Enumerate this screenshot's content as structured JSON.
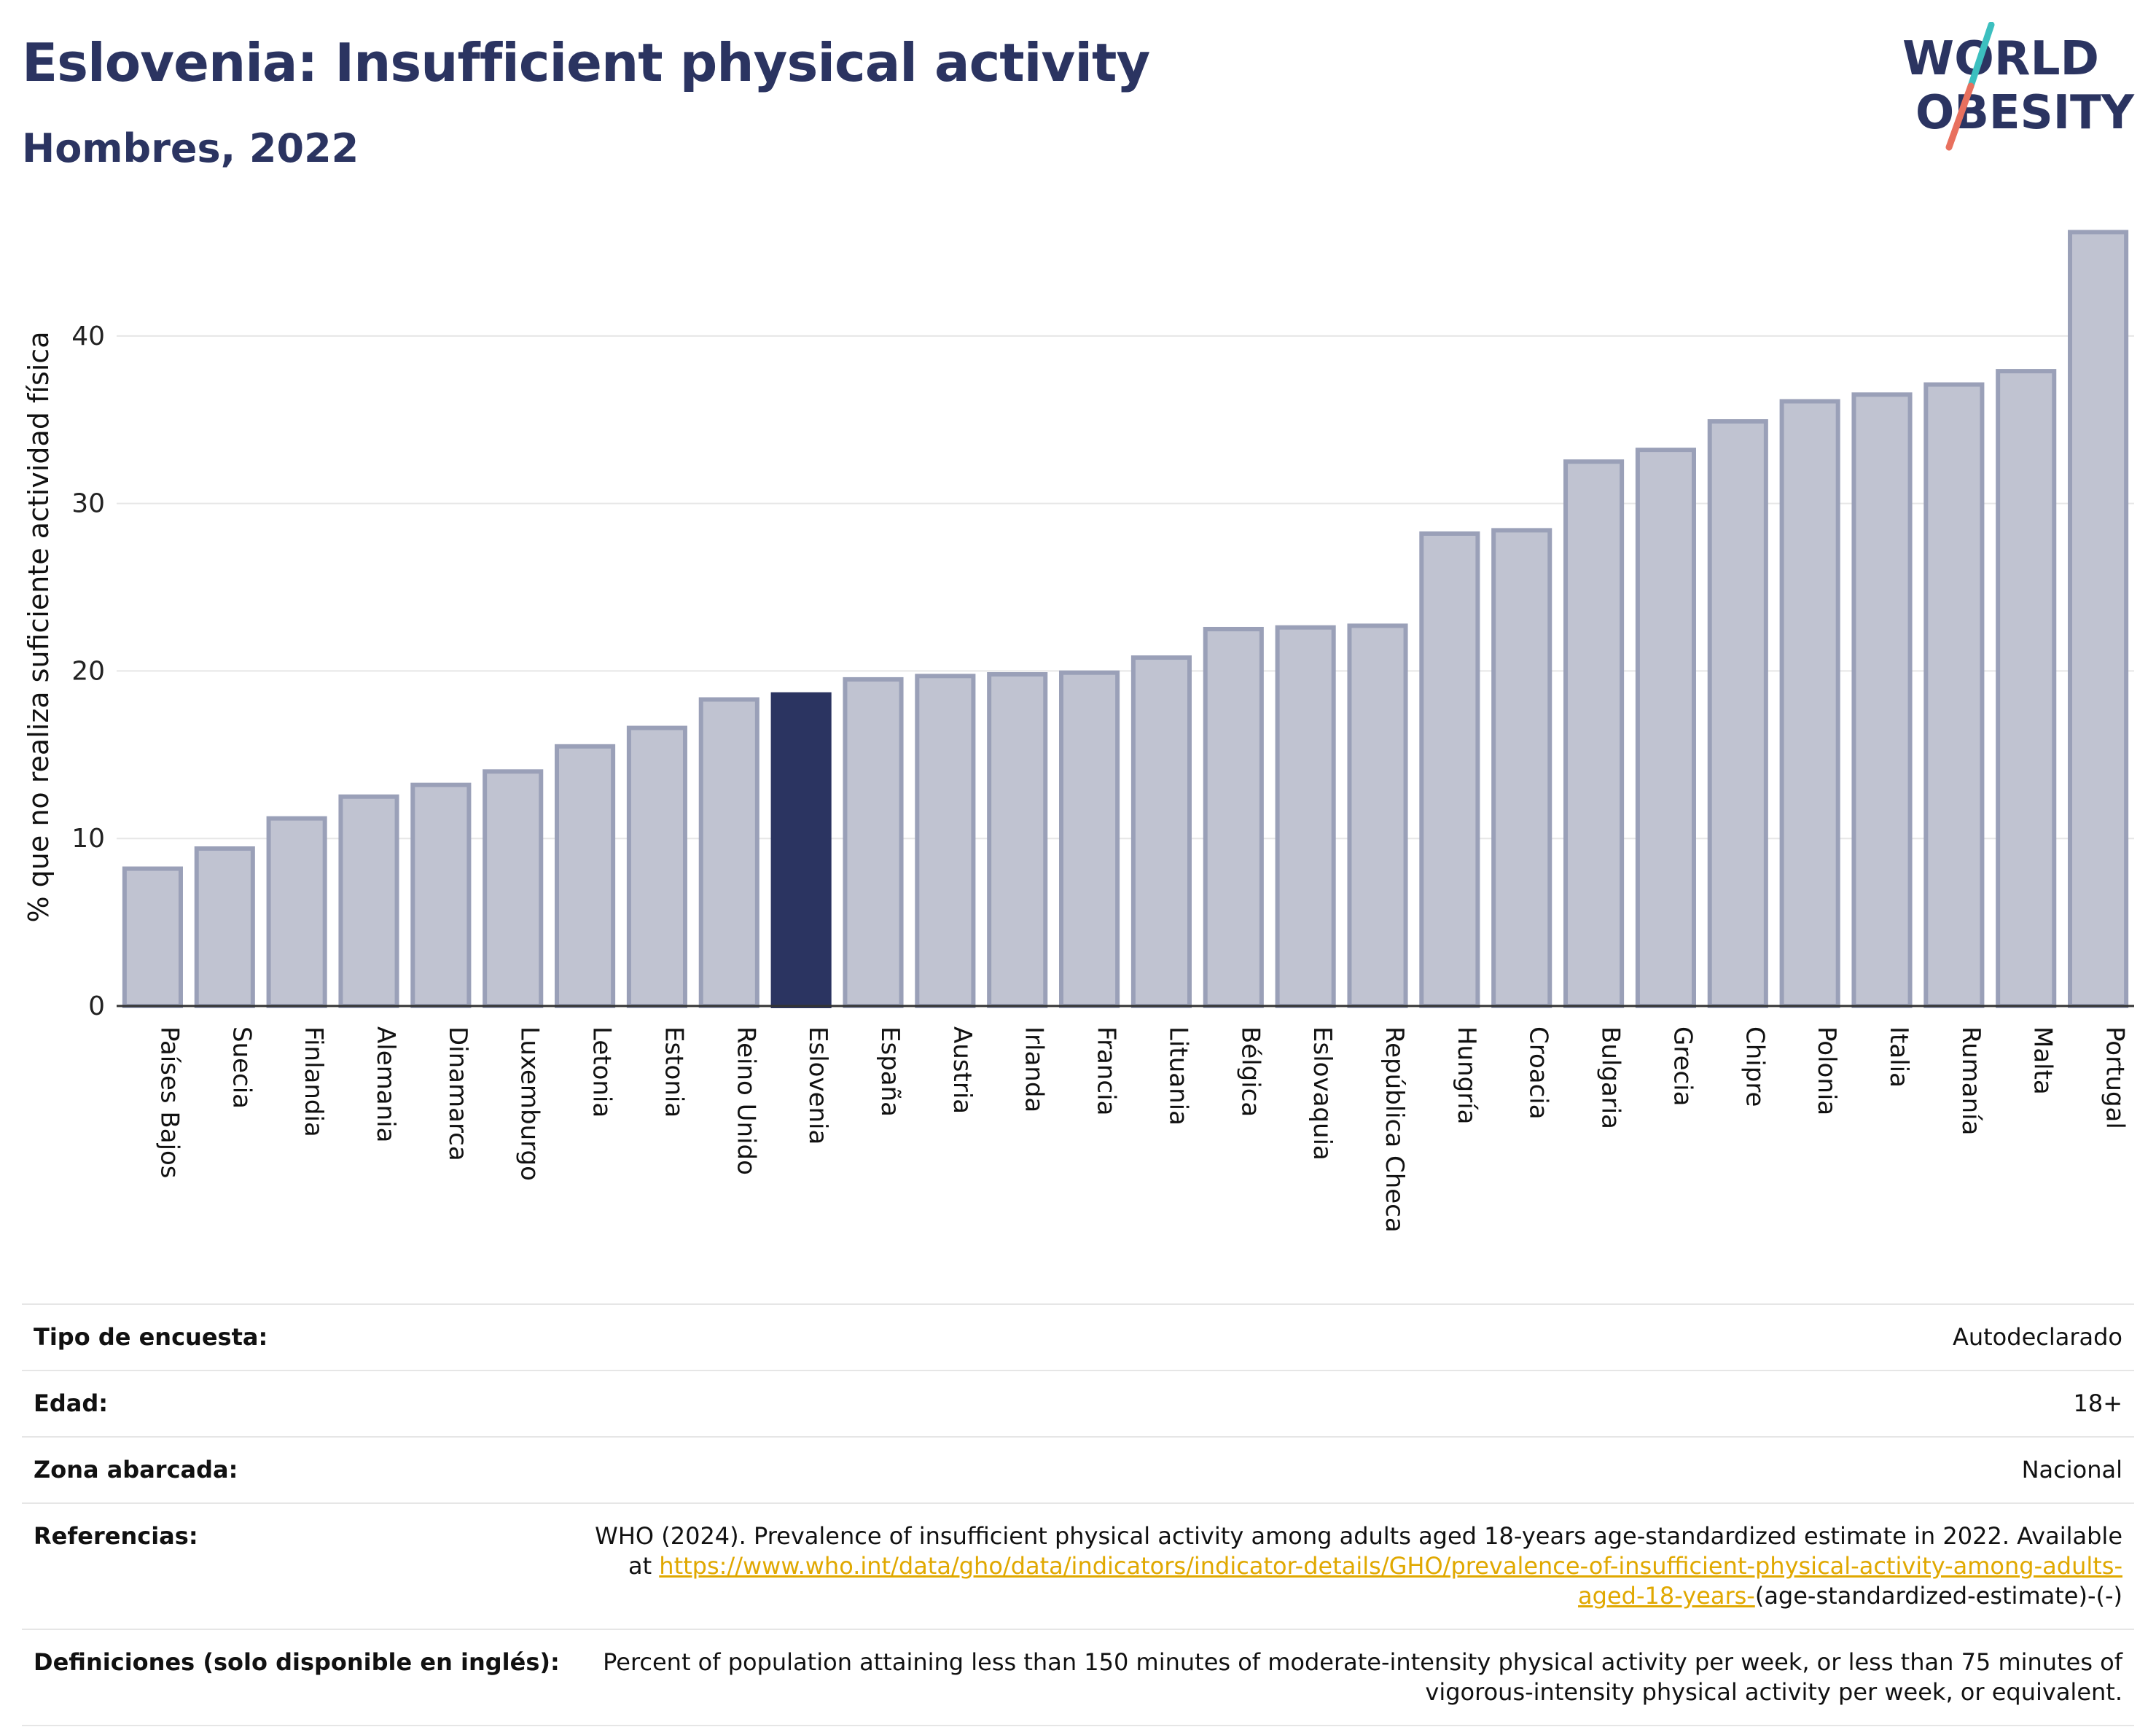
{
  "header": {
    "title": "Eslovenia: Insufficient physical activity",
    "subtitle": "Hombres, 2022"
  },
  "logo": {
    "line1": "WORLD",
    "line2": "OBESITY"
  },
  "colors": {
    "highlight": "#2b3461",
    "bar_fill": "#c0c3d1",
    "bar_stroke": "#9aa0b8",
    "accent_teal": "#3cbfbf",
    "accent_coral": "#e8705e",
    "link": "#e0a800"
  },
  "chart_data": {
    "type": "bar",
    "title": "Eslovenia: Insufficient physical activity",
    "subtitle": "Hombres, 2022",
    "ylabel": "% que no realiza suficiente actividad física",
    "xlabel": "",
    "ylim": [
      0,
      47
    ],
    "yticks": [
      0,
      10,
      20,
      30,
      40
    ],
    "grid": true,
    "highlight": "Eslovenia",
    "categories": [
      "Países Bajos",
      "Suecia",
      "Finlandia",
      "Alemania",
      "Dinamarca",
      "Luxemburgo",
      "Letonia",
      "Estonia",
      "Reino Unido",
      "Eslovenia",
      "España",
      "Austria",
      "Irlanda",
      "Francia",
      "Lituania",
      "Bélgica",
      "Eslovaquia",
      "República Checa",
      "Hungría",
      "Croacia",
      "Bulgaria",
      "Grecia",
      "Chipre",
      "Polonia",
      "Italia",
      "Rumanía",
      "Malta",
      "Portugal"
    ],
    "values": [
      8.2,
      9.4,
      11.2,
      12.5,
      13.2,
      14.0,
      15.5,
      16.6,
      18.3,
      18.6,
      19.5,
      19.7,
      19.8,
      19.9,
      20.8,
      22.5,
      22.6,
      22.7,
      28.2,
      28.4,
      32.5,
      33.2,
      34.9,
      36.1,
      36.5,
      37.1,
      37.9,
      46.2
    ]
  },
  "meta": {
    "survey_label": "Tipo de encuesta:",
    "survey_value": "Autodeclarado",
    "age_label": "Edad:",
    "age_value": "18+",
    "area_label": "Zona abarcada:",
    "area_value": "Nacional",
    "refs_label": "Referencias:",
    "refs_text": "WHO (2024). Prevalence of insufficient physical activity among adults aged 18-years age-standardized estimate in 2022. Available at",
    "refs_link": "https://www.who.int/data/gho/data/indicators/indicator-details/GHO/prevalence-of-insufficient-physical-activity-among-adults-aged-18-years-",
    "refs_suffix": "(age-standardized-estimate)-(-)",
    "defs_label": "Definiciones (solo disponible en inglés):",
    "defs_value": "Percent of population attaining less than 150 minutes of moderate-intensity physical activity per week, or less than 75 minutes of vigorous-intensity physical activity per week, or equivalent."
  }
}
